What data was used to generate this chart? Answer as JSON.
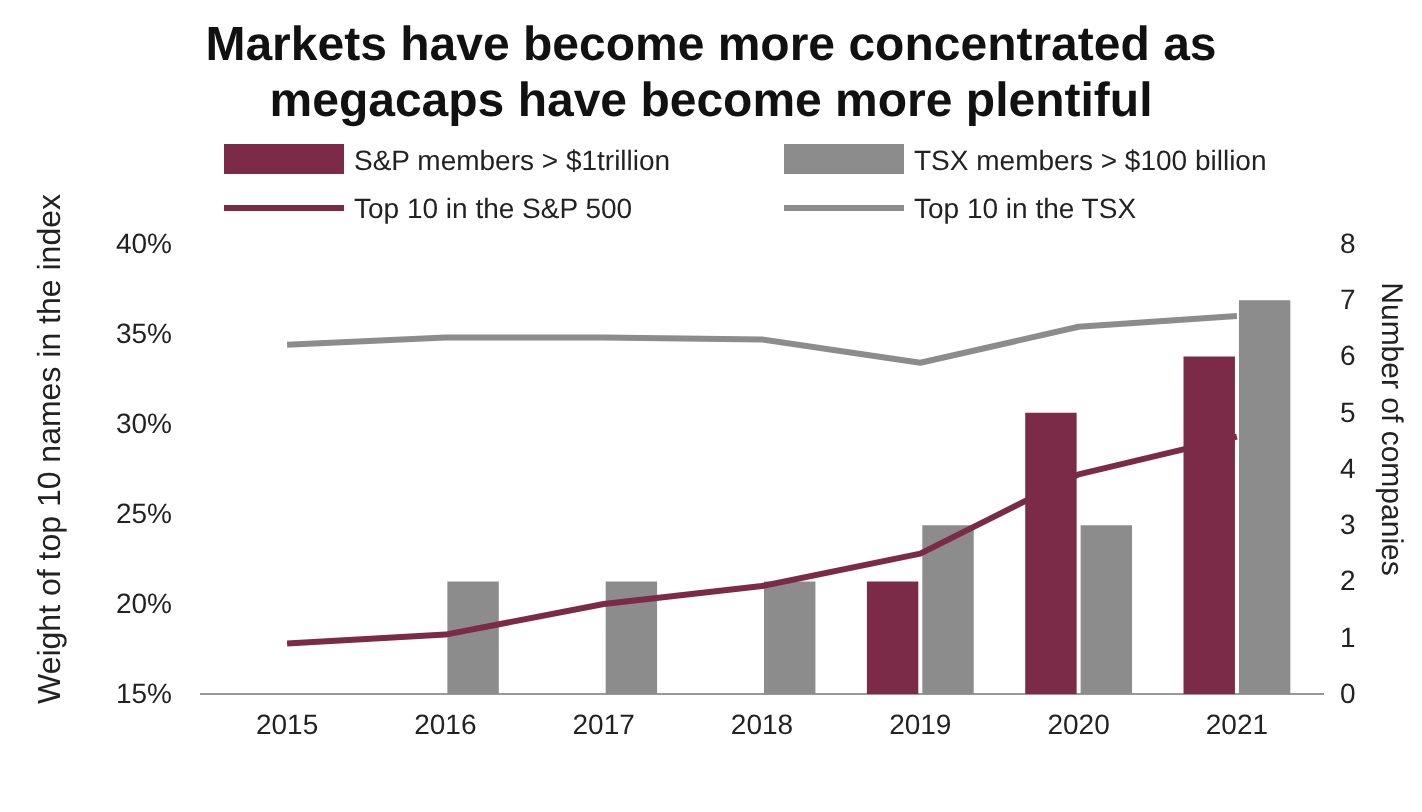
{
  "chart_data": {
    "type": "bar",
    "title": "Markets have become more concentrated as megacaps have become more plentiful",
    "ylabel": "Weight of top 10 names in the index",
    "y2label": "Number of companies",
    "categories": [
      "2015",
      "2016",
      "2017",
      "2018",
      "2019",
      "2020",
      "2021"
    ],
    "series": [
      {
        "name": "S&P members > $1trillion",
        "axis": "y2",
        "color": "#7b2a48",
        "values": [
          null,
          null,
          null,
          null,
          2,
          5,
          6
        ]
      },
      {
        "name": "TSX members > $100 billion",
        "axis": "y2",
        "color": "#8c8c8c",
        "values": [
          null,
          2,
          2,
          2,
          3,
          3,
          7
        ]
      },
      {
        "name": "Top 10 in the S&P 500",
        "type": "line",
        "axis": "y",
        "color": "#7b2a48",
        "values": [
          17.8,
          18.3,
          20.0,
          21.0,
          22.8,
          27.2,
          29.3
        ]
      },
      {
        "name": "Top 10 in the TSX",
        "type": "line",
        "axis": "y",
        "color": "#8c8c8c",
        "values": [
          34.4,
          34.8,
          34.8,
          34.7,
          33.4,
          35.4,
          36.0
        ]
      }
    ],
    "ylim": [
      15,
      40
    ],
    "yticks": [
      {
        "value": 15,
        "label": "15%"
      },
      {
        "value": 20,
        "label": "20%"
      },
      {
        "value": 25,
        "label": "25%"
      },
      {
        "value": 30,
        "label": "30%"
      },
      {
        "value": 35,
        "label": "35%"
      },
      {
        "value": 40,
        "label": "40%"
      }
    ],
    "y2lim": [
      0,
      8
    ],
    "y2ticks": [
      0,
      1,
      2,
      3,
      4,
      5,
      6,
      7,
      8
    ],
    "legend": "top left",
    "grid": false,
    "marker": "none",
    "line_style": "solid"
  }
}
